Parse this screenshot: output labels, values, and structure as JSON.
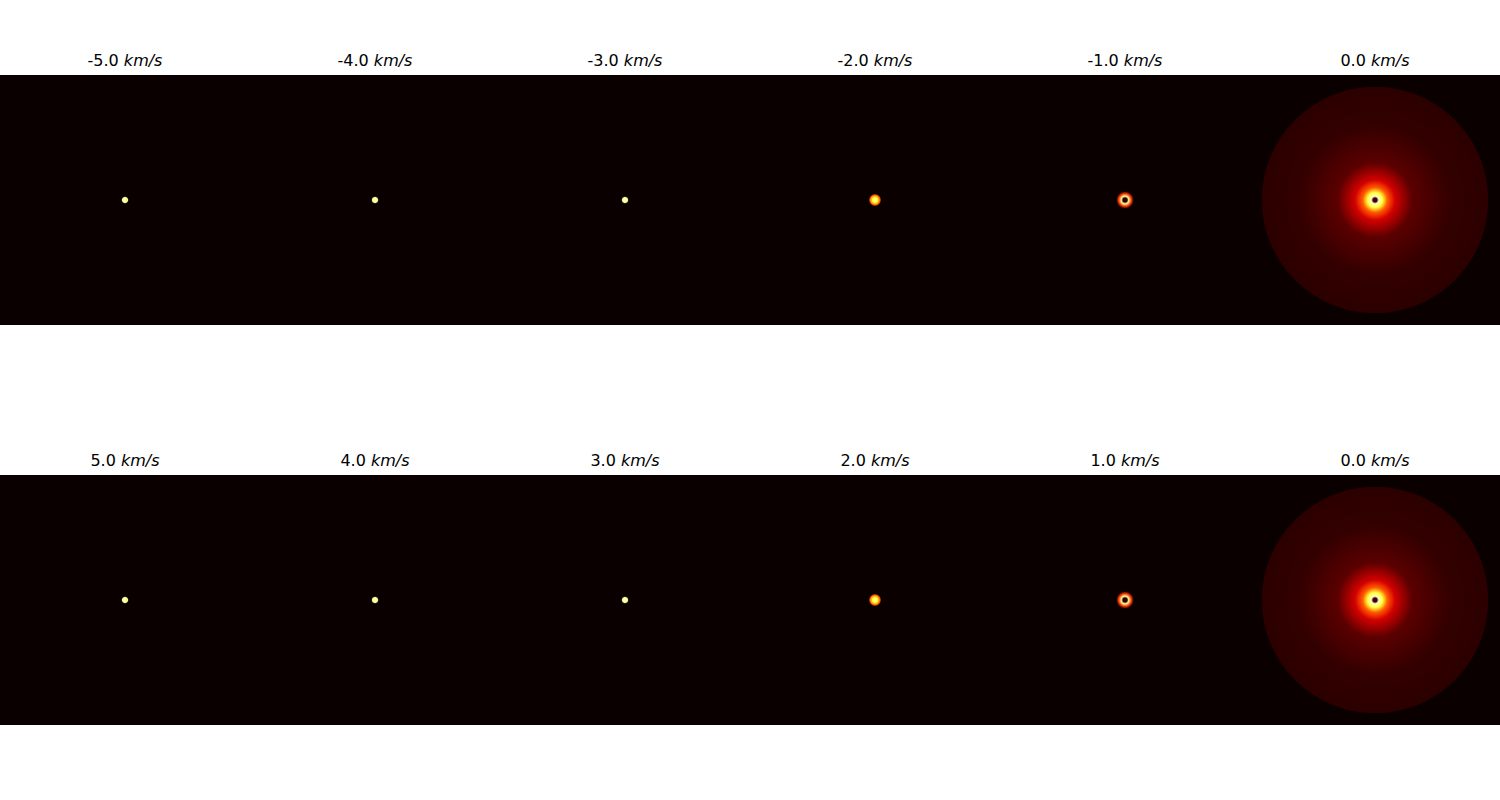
{
  "chart_data": [
    {
      "type": "image",
      "title": "-5.0 km/s",
      "xlim": [
        -50,
        50
      ],
      "ylim": [
        -50,
        50
      ],
      "tick_labels": false,
      "center": [
        0,
        0
      ],
      "intensity_range": [
        0,
        1
      ],
      "radius": [
        0,
        1,
        1.5
      ],
      "intensity": [
        0.92,
        0.9,
        0
      ]
    },
    {
      "type": "image",
      "title": "-4.0 km/s",
      "xlim": [
        -50,
        50
      ],
      "ylim": [
        -50,
        50
      ],
      "tick_labels": false,
      "center": [
        0,
        0
      ],
      "intensity_range": [
        0,
        1
      ],
      "radius": [
        0,
        1,
        1.5
      ],
      "intensity": [
        0.92,
        0.9,
        0
      ]
    },
    {
      "type": "image",
      "title": "-3.0 km/s",
      "xlim": [
        -50,
        50
      ],
      "ylim": [
        -50,
        50
      ],
      "tick_labels": false,
      "center": [
        0,
        0
      ],
      "intensity_range": [
        0,
        1
      ],
      "radius": [
        0,
        1,
        1.5
      ],
      "intensity": [
        0.92,
        0.9,
        0
      ]
    },
    {
      "type": "image",
      "title": "-2.0 km/s",
      "xlim": [
        -50,
        50
      ],
      "ylim": [
        -50,
        50
      ],
      "tick_labels": false,
      "center": [
        0,
        0
      ],
      "intensity_range": [
        0,
        1
      ],
      "radius": [
        0,
        1,
        2,
        2.5
      ],
      "intensity": [
        0.9,
        0.8,
        0.5,
        0
      ]
    },
    {
      "type": "image",
      "title": "-1.0 km/s",
      "xlim": [
        -50,
        50
      ],
      "ylim": [
        -50,
        50
      ],
      "tick_labels": false,
      "center": [
        0,
        0
      ],
      "intensity_range": [
        0,
        1
      ],
      "radius": [
        0,
        0.8,
        1.5,
        2.5,
        3.5
      ],
      "intensity": [
        0.05,
        0.05,
        0.9,
        0.45,
        0
      ]
    },
    {
      "type": "image",
      "title": "0.0 km/s",
      "xlim": [
        -50,
        50
      ],
      "ylim": [
        -50,
        50
      ],
      "tick_labels": false,
      "center": [
        0,
        0
      ],
      "intensity_range": [
        0,
        1
      ],
      "radius": [
        0,
        0.8,
        1.5,
        3,
        5,
        8,
        15,
        30,
        45,
        45.5
      ],
      "intensity": [
        0.05,
        0.1,
        0.95,
        0.8,
        0.5,
        0.3,
        0.12,
        0.06,
        0.05,
        0
      ]
    },
    {
      "type": "image",
      "title": "5.0 km/s",
      "xlim": [
        -50,
        50
      ],
      "ylim": [
        -50,
        50
      ],
      "tick_labels": false,
      "center": [
        0,
        0
      ],
      "intensity_range": [
        0,
        1
      ],
      "radius": [
        0,
        1,
        1.5
      ],
      "intensity": [
        0.92,
        0.9,
        0
      ]
    },
    {
      "type": "image",
      "title": "4.0 km/s",
      "xlim": [
        -50,
        50
      ],
      "ylim": [
        -50,
        50
      ],
      "tick_labels": false,
      "center": [
        0,
        0
      ],
      "intensity_range": [
        0,
        1
      ],
      "radius": [
        0,
        1,
        1.5
      ],
      "intensity": [
        0.92,
        0.9,
        0
      ]
    },
    {
      "type": "image",
      "title": "3.0 km/s",
      "xlim": [
        -50,
        50
      ],
      "ylim": [
        -50,
        50
      ],
      "tick_labels": false,
      "center": [
        0,
        0
      ],
      "intensity_range": [
        0,
        1
      ],
      "radius": [
        0,
        1,
        1.5
      ],
      "intensity": [
        0.92,
        0.9,
        0
      ]
    },
    {
      "type": "image",
      "title": "2.0 km/s",
      "xlim": [
        -50,
        50
      ],
      "ylim": [
        -50,
        50
      ],
      "tick_labels": false,
      "center": [
        0,
        0
      ],
      "intensity_range": [
        0,
        1
      ],
      "radius": [
        0,
        1,
        2,
        2.5
      ],
      "intensity": [
        0.9,
        0.8,
        0.5,
        0
      ]
    },
    {
      "type": "image",
      "title": "1.0 km/s",
      "xlim": [
        -50,
        50
      ],
      "ylim": [
        -50,
        50
      ],
      "tick_labels": false,
      "center": [
        0,
        0
      ],
      "intensity_range": [
        0,
        1
      ],
      "radius": [
        0,
        0.8,
        1.5,
        2.5,
        3.5
      ],
      "intensity": [
        0.05,
        0.05,
        0.9,
        0.45,
        0
      ]
    },
    {
      "type": "image",
      "title": "0.0 km/s",
      "xlim": [
        -50,
        50
      ],
      "ylim": [
        -50,
        50
      ],
      "tick_labels": false,
      "center": [
        0,
        0
      ],
      "intensity_range": [
        0,
        1
      ],
      "radius": [
        0,
        0.8,
        1.5,
        3,
        5,
        8,
        15,
        30,
        45,
        45.5
      ],
      "intensity": [
        0.05,
        0.1,
        0.95,
        0.8,
        0.5,
        0.3,
        0.12,
        0.06,
        0.05,
        0
      ]
    }
  ]
}
